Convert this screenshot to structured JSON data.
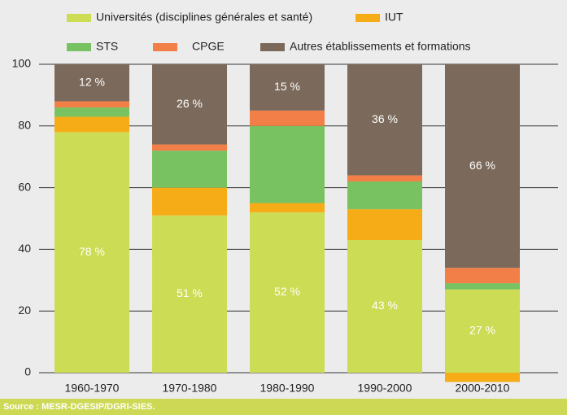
{
  "chart_data": {
    "type": "stacked_bar",
    "categories": [
      "1960-1970",
      "1970-1980",
      "1980-1990",
      "1990-2000",
      "2000-2010"
    ],
    "series": [
      {
        "name": "Universités (disciplines générales et santé)",
        "color": "#cddc55",
        "values": [
          78,
          51,
          52,
          43,
          27
        ],
        "value_labels": [
          "78 %",
          "51 %",
          "52 %",
          "43 %",
          "27 %"
        ]
      },
      {
        "name": "IUT",
        "color": "#f6ac17",
        "values": [
          5,
          9,
          3,
          10,
          -3
        ]
      },
      {
        "name": "STS",
        "color": "#78c262",
        "values": [
          3,
          12,
          25,
          9,
          2
        ]
      },
      {
        "name": "CPGE",
        "color": "#f17f47",
        "values": [
          2,
          2,
          5,
          2,
          5
        ]
      },
      {
        "name": "Autres établissements et formations",
        "color": "#7b6a5b",
        "values": [
          12,
          26,
          15,
          36,
          66
        ],
        "value_labels": [
          "12 %",
          "26 %",
          "15 %",
          "36 %",
          "66 %"
        ]
      }
    ],
    "ylim": [
      0,
      100
    ],
    "yticks": [
      0,
      20,
      40,
      60,
      80,
      100
    ],
    "grid": true
  },
  "source": "Source : MESR-DGESIP/DGRI-SIES."
}
